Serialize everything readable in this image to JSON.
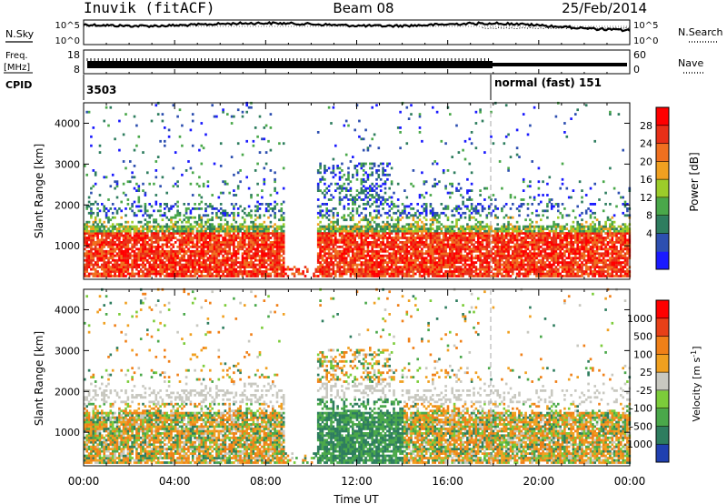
{
  "header": {
    "station": "Inuvik (fitACF)",
    "beam": "Beam 08",
    "date": "25/Feb/2014"
  },
  "top_panels": {
    "nsky_label": "N.Sky",
    "nsearch_label": "N.Search",
    "noise_ticks": [
      "10^5",
      "10^0"
    ],
    "freq_label_1": "Freq.",
    "freq_label_2": "[MHz]",
    "freq_ticks": [
      "18",
      "8"
    ],
    "nave_label": "Nave",
    "nave_ticks": [
      "60",
      "0"
    ],
    "cpid_label": "CPID",
    "cpid_1": "3503",
    "cpid_2": "normal (fast) 151"
  },
  "chart_data": [
    {
      "type": "heatmap",
      "panel": "power",
      "xlabel": "",
      "ylabel": "Slant Range [km]",
      "ylim": [
        180,
        4500
      ],
      "y_ticks": [
        1000,
        2000,
        3000,
        4000
      ],
      "colorbar_label": "Power [dB]",
      "colorbar_ticks": [
        "28",
        "24",
        "20",
        "16",
        "12",
        "8",
        "4"
      ],
      "colors": [
        "#1a1aff",
        "#2d4fb0",
        "#2e7d5f",
        "#4aa84a",
        "#9ccc2a",
        "#f0a020",
        "#f07020",
        "#e83018",
        "#ff0000"
      ]
    },
    {
      "type": "heatmap",
      "panel": "velocity",
      "xlabel": "Time UT",
      "ylabel": "Slant Range [km]",
      "ylim": [
        180,
        4500
      ],
      "y_ticks": [
        1000,
        2000,
        3000,
        4000
      ],
      "x_ticks": [
        "00:00",
        "04:00",
        "08:00",
        "12:00",
        "16:00",
        "20:00",
        "00:00"
      ],
      "colorbar_label": "Velocity [m s^-1]",
      "colorbar_label_main": "Velocity [m s",
      "colorbar_label_exp": "-1",
      "colorbar_label_close": "]",
      "colorbar_ticks": [
        "1000",
        "500",
        "100",
        "25",
        "-25",
        "-100",
        "-500",
        "-1000"
      ],
      "colors": [
        "#2040b0",
        "#2e7d5f",
        "#4aa84a",
        "#7ccc3a",
        "#c8c8c0",
        "#f0a020",
        "#f08018",
        "#e84018",
        "#ff0000"
      ]
    }
  ]
}
